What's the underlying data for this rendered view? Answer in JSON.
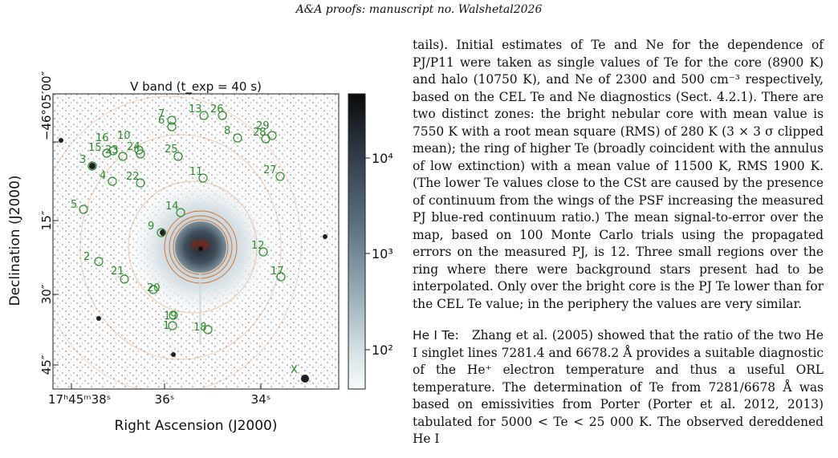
{
  "running_head": "A&A proofs: manuscript no. Walshetal2026",
  "figure": {
    "band_label": "V band (t_exp = 40 s)",
    "xlabel": "Right Ascension (J2000)",
    "ylabel": "Declination (J2000)",
    "x_ticks": [
      "17ʰ45ᵐ38ˢ",
      "36ˢ",
      "34ˢ"
    ],
    "y_ticks": [
      "−46°05′00″",
      "15″",
      "30″",
      "45″"
    ],
    "colorbar_ticks": [
      "10⁴",
      "10³",
      "10²"
    ],
    "regions": [
      {
        "id": "1"
      },
      {
        "id": "2"
      },
      {
        "id": "3"
      },
      {
        "id": "4"
      },
      {
        "id": "5"
      },
      {
        "id": "6"
      },
      {
        "id": "7"
      },
      {
        "id": "8"
      },
      {
        "id": "9"
      },
      {
        "id": "10"
      },
      {
        "id": "11"
      },
      {
        "id": "12"
      },
      {
        "id": "13"
      },
      {
        "id": "14"
      },
      {
        "id": "15"
      },
      {
        "id": "16"
      },
      {
        "id": "17"
      },
      {
        "id": "18"
      },
      {
        "id": "19"
      },
      {
        "id": "20"
      },
      {
        "id": "21"
      },
      {
        "id": "22"
      },
      {
        "id": "23"
      },
      {
        "id": "24"
      },
      {
        "id": "25"
      },
      {
        "id": "26"
      },
      {
        "id": "27"
      },
      {
        "id": "28"
      },
      {
        "id": "29"
      },
      {
        "id": "X"
      }
    ]
  },
  "body": {
    "p1": "tails). Initial estimates of Te and Ne for the dependence of PJ/P11 were taken as single values of Te for the core (8900 K) and halo (10750 K), and Ne of 2300 and 500 cm⁻³ respectively, based on the CEL Te and Ne diagnostics (Sect. 4.2.1). There are two distinct zones: the bright nebular core with mean value is 7550 K with a root mean square (RMS) of 280 K (3 × 3 σ clipped mean); the ring of higher Te (broadly coincident with the annulus of low extinction) with a mean value of 11500 K, RMS 1900 K. (The lower Te values close to the CSt are caused by the presence of continuum from the wings of the PSF increasing the measured PJ blue-red continuum ratio.) The mean signal-to-error over the map, based on 100 Monte Carlo trials using the propagated errors on the measured PJ, is 12. Three small regions over the ring where there were background stars present had to be interpolated. Only over the bright core is the PJ Te lower than for the CEL Te value; in the periphery the values are very similar.",
    "p2_heading": "He I Te:",
    "p2": "Zhang et al. (2005) showed that the ratio of the two He I singlet lines 7281.4 and 6678.2 Å provides a suitable diagnostic of the He⁺ electron temperature and thus a useful ORL temperature. The determination of Te from 7281/6678 Å was based on emissivities from Porter (Porter et al. 2012, 2013) tabulated for 5000 < Te < 25 000 K. The observed dereddened He I"
  },
  "colors": {
    "region_marker": "#2e8b2e",
    "contour": "#d2691e",
    "core": "#3d4a55"
  }
}
